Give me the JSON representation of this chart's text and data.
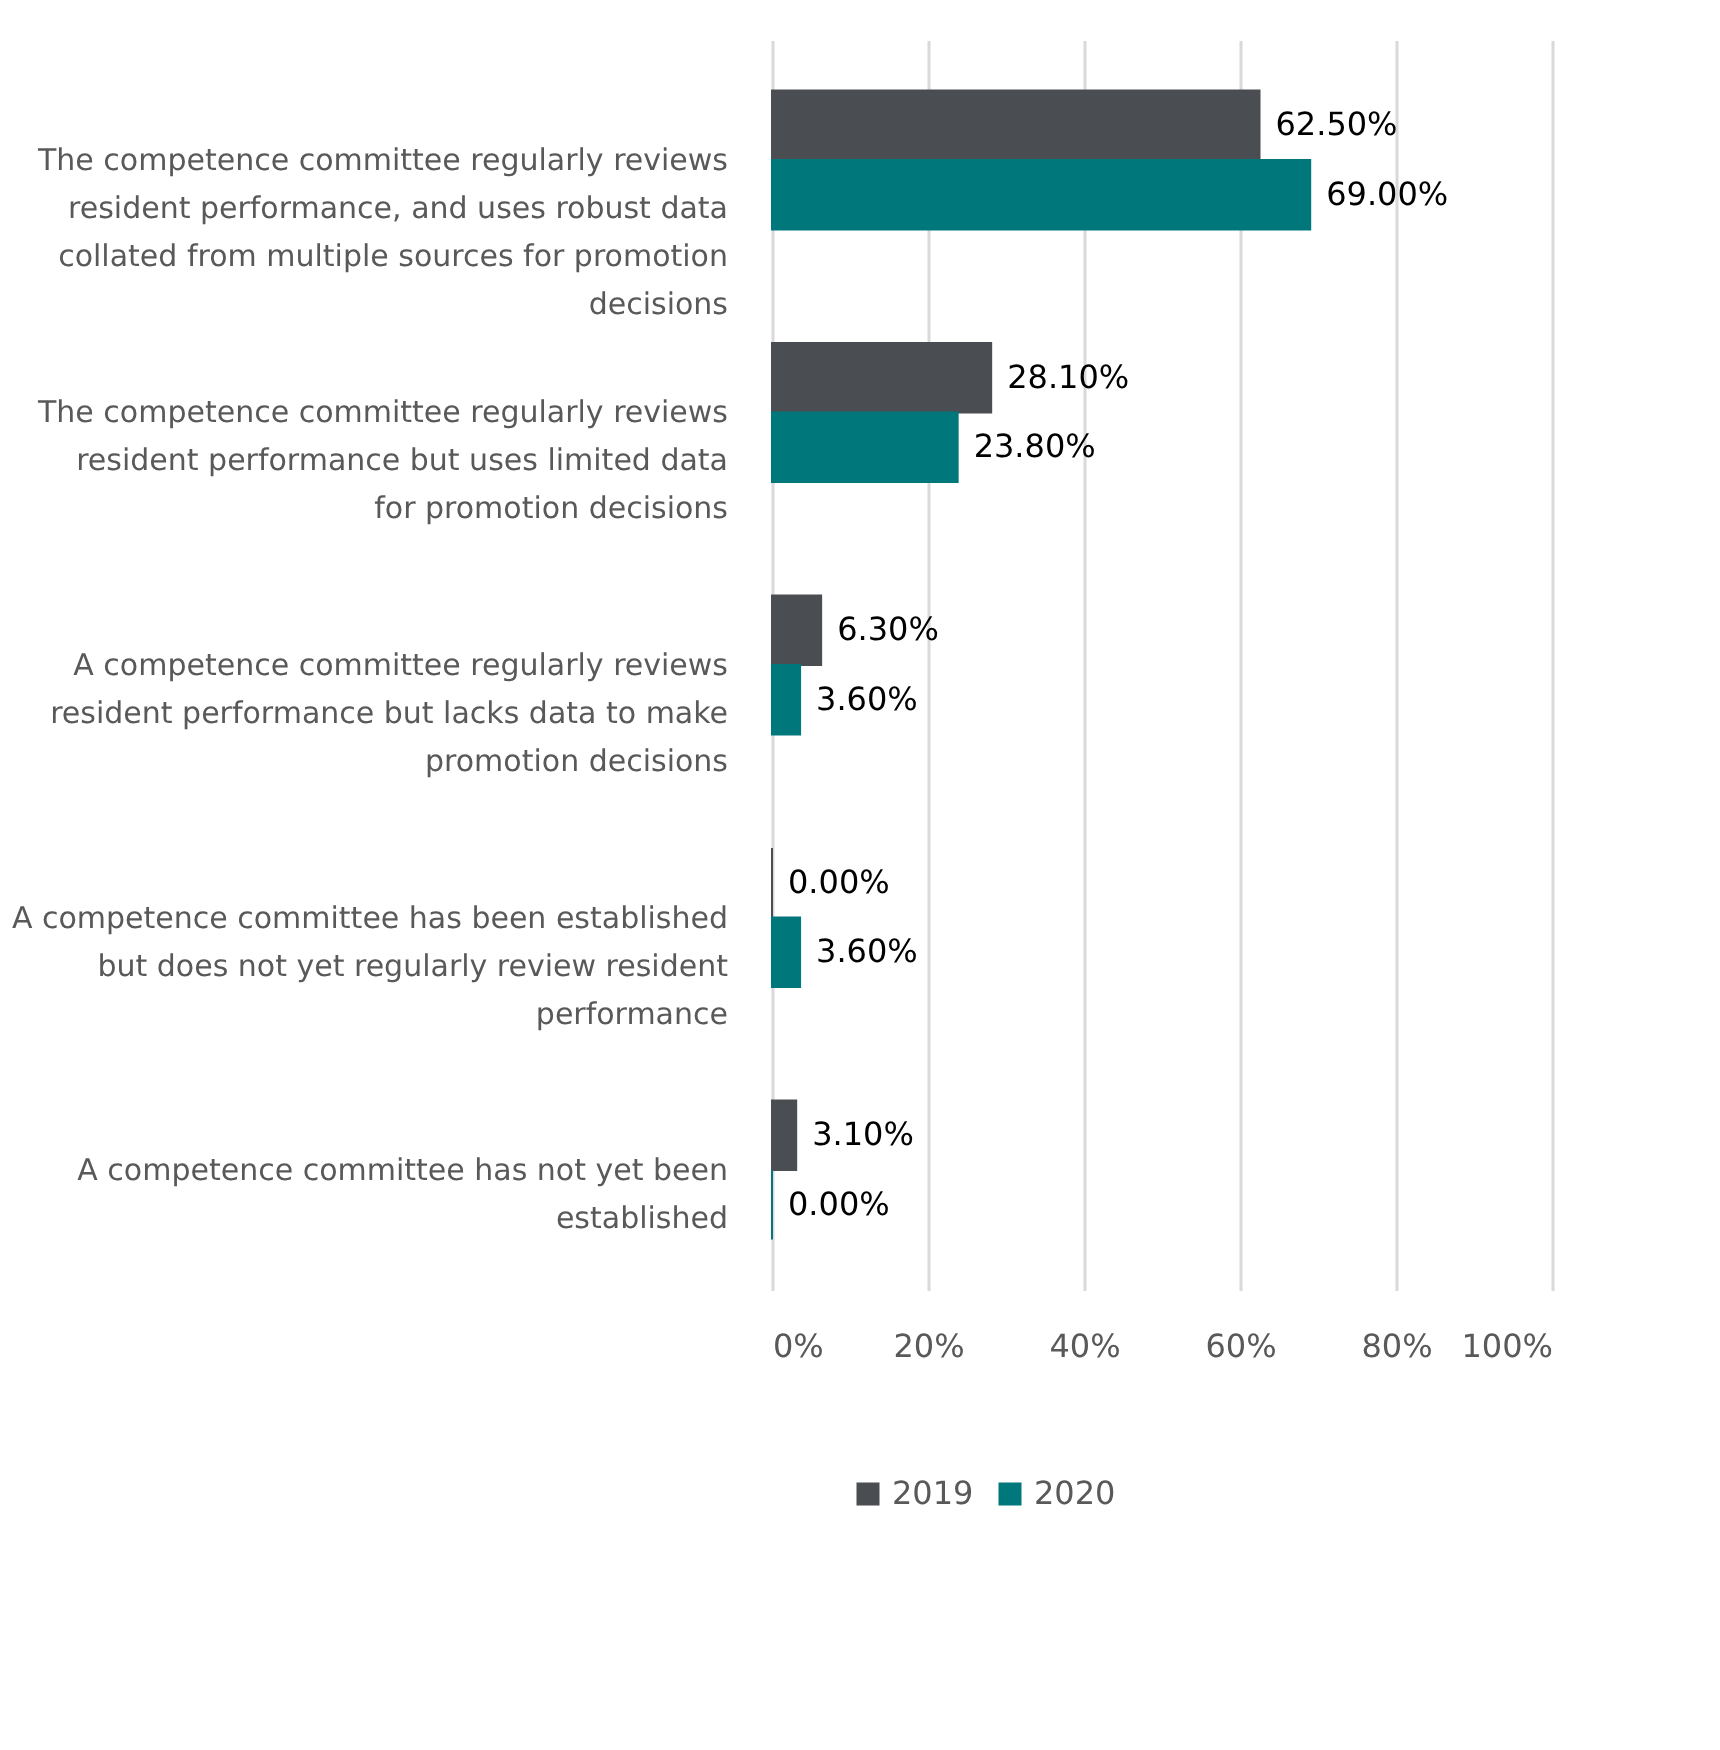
{
  "chart_data": {
    "type": "bar",
    "orientation": "horizontal",
    "categories": [
      "The competence committee regularly reviews resident performance, and uses robust data collated from multiple sources for promotion decisions",
      "The competence committee regularly reviews resident performance but uses limited data for promotion decisions",
      "A competence committee regularly reviews resident performance but lacks data to make promotion decisions",
      "A competence committee has been established but does not yet regularly review resident performance",
      "A competence committee has not yet been established"
    ],
    "series": [
      {
        "name": "2019",
        "color": "#4a4d52",
        "values": [
          62.5,
          28.1,
          6.3,
          0,
          3.1
        ],
        "value_labels": [
          "62.50%",
          "28.10%",
          "6.30%",
          "0.00%",
          "3.10%"
        ]
      },
      {
        "name": "2020",
        "color": "#00777a",
        "values": [
          69.0,
          23.8,
          3.6,
          3.6,
          0
        ],
        "value_labels": [
          "69.00%",
          "23.80%",
          "3.60%",
          "3.60%",
          "0.00%"
        ]
      }
    ],
    "xlim": [
      0,
      100
    ],
    "xticks": [
      {
        "value": 0,
        "label": "0%"
      },
      {
        "value": 20,
        "label": "20%"
      },
      {
        "value": 40,
        "label": "40%"
      },
      {
        "value": 60,
        "label": "60%"
      },
      {
        "value": 80,
        "label": "80%"
      },
      {
        "value": 100,
        "label": "100%"
      }
    ],
    "grid": "x",
    "legend": "bottom"
  }
}
